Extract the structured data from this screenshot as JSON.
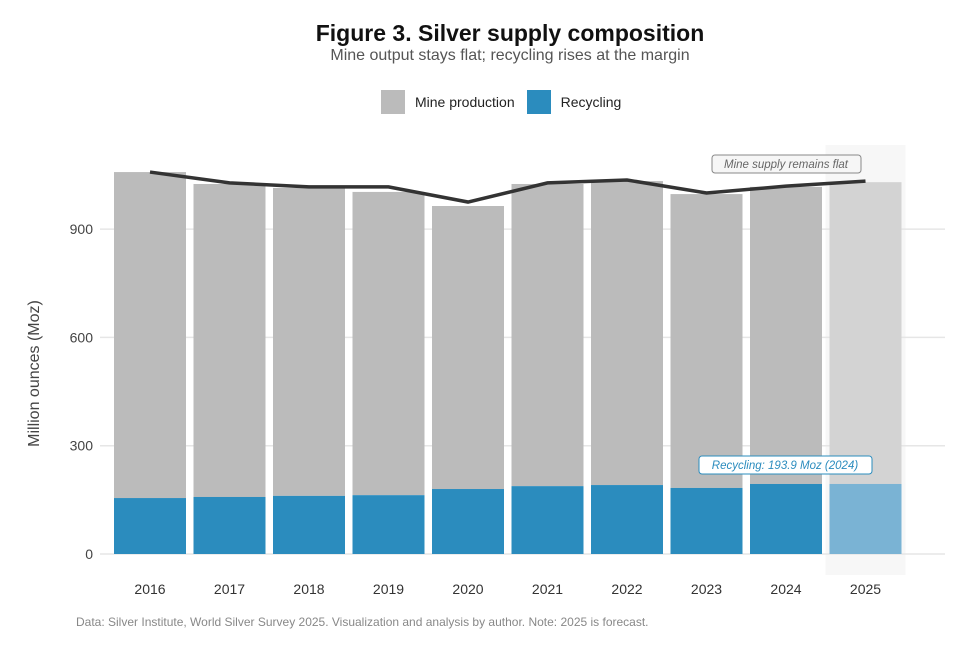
{
  "chart_data": {
    "type": "bar",
    "title": "Figure 3. Silver supply composition",
    "subtitle": "Mine output stays flat; recycling rises at the margin",
    "ylabel": "Million ounces (Moz)",
    "xlabel": "",
    "ylim": [
      0,
      1130
    ],
    "yticks": [
      0,
      300,
      600,
      900
    ],
    "categories": [
      "2016",
      "2017",
      "2018",
      "2019",
      "2020",
      "2021",
      "2022",
      "2023",
      "2024",
      "2025"
    ],
    "series": [
      {
        "name": "Mine production",
        "color": "#bbbbbb",
        "forecast_color": "#d3d3d3",
        "values": [
          903,
          867,
          853,
          840,
          784,
          837,
          842,
          814,
          823,
          836
        ]
      },
      {
        "name": "Recycling",
        "color": "#2b8cbe",
        "forecast_color": "#7ab3d4",
        "values": [
          155,
          158,
          161,
          163,
          180,
          188,
          191,
          183,
          194,
          194
        ]
      }
    ],
    "line": {
      "name": "Total supply",
      "color": "#333333",
      "values": [
        1058,
        1028,
        1017,
        1017,
        975,
        1028,
        1036,
        1000,
        1019,
        1033
      ]
    },
    "forecast_category": "2025",
    "annotations": [
      "Mine supply remains flat",
      "Recycling: 193.9 Moz (2024)"
    ],
    "legend_position": "top",
    "grid": true,
    "caption": "Data: Silver Institute, World Silver Survey 2025. Visualization and analysis by author. Note: 2025 is forecast."
  }
}
